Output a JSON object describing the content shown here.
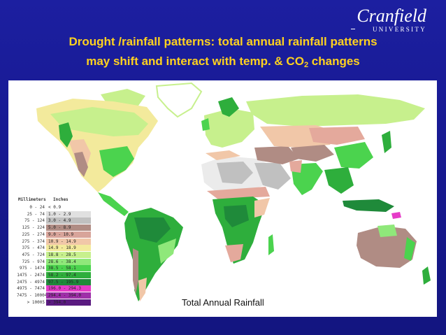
{
  "logo": {
    "name": "Cranfield",
    "sub": "UNIVERSITY"
  },
  "title": {
    "line1": "Drought /rainfall patterns: total annual rainfall patterns",
    "line2_pre": "may shift and interact with temp. & CO",
    "line2_sub": "2",
    "line2_post": " changes"
  },
  "map": {
    "caption": "Total Annual Rainfall",
    "legend": {
      "mm_header": "Millimeters",
      "in_header": "Inches",
      "rows": [
        {
          "mm": "0 -   24",
          "in": "<  0.9",
          "color": "#ffffff"
        },
        {
          "mm": "25 -   74",
          "in": "1.0 -  2.9",
          "color": "#e0e0e0"
        },
        {
          "mm": "75 -  124",
          "in": "3.0 -  4.9",
          "color": "#c0c0c0"
        },
        {
          "mm": "125 -  224",
          "in": "5.0 -  8.9",
          "color": "#b08c84"
        },
        {
          "mm": "225 -  274",
          "in": "9.0 - 10.9",
          "color": "#d8a49a"
        },
        {
          "mm": "275 -  374",
          "in": "10.9 - 14.9",
          "color": "#f1c7a8"
        },
        {
          "mm": "375 -  474",
          "in": "14.9 - 18.9",
          "color": "#f3ea9c"
        },
        {
          "mm": "475 -  724",
          "in": "18.8 - 28.5",
          "color": "#c7f08d"
        },
        {
          "mm": "725 -  974",
          "in": "28.6 - 38.4",
          "color": "#8fe87a"
        },
        {
          "mm": "975 - 1474",
          "in": "38.5 - 58.1",
          "color": "#4bd34e"
        },
        {
          "mm": "1475 - 2474",
          "in": "58.2 - 97.4",
          "color": "#2eae3c"
        },
        {
          "mm": "2475 - 4974",
          "in": "97.5 - 195.9",
          "color": "#1f8a3a"
        },
        {
          "mm": "4975 - 7474",
          "in": "196.0 - 294.3",
          "color": "#e63cc8"
        },
        {
          "mm": "7475 - 10004",
          "in": "294.4 - 394.0",
          "color": "#9e2fa8"
        },
        {
          "mm": "> 10005",
          "in": "> 394.0",
          "color": "#5a1a80"
        }
      ]
    },
    "colors": {
      "ocean": "#ffffff",
      "ice": "#ffffff",
      "desert_white": "#ebebeb",
      "arid_grey": "#c0c0c0",
      "semi_arid": "#b08c84",
      "dry": "#e4a99c",
      "tan": "#f1c7a8",
      "yellow": "#f3ea9c",
      "lime": "#c7f08d",
      "light_green": "#8fe87a",
      "green": "#4bd34e",
      "mid_green": "#2eae3c",
      "dark_green": "#1f8a3a",
      "magenta": "#e63cc8"
    }
  }
}
